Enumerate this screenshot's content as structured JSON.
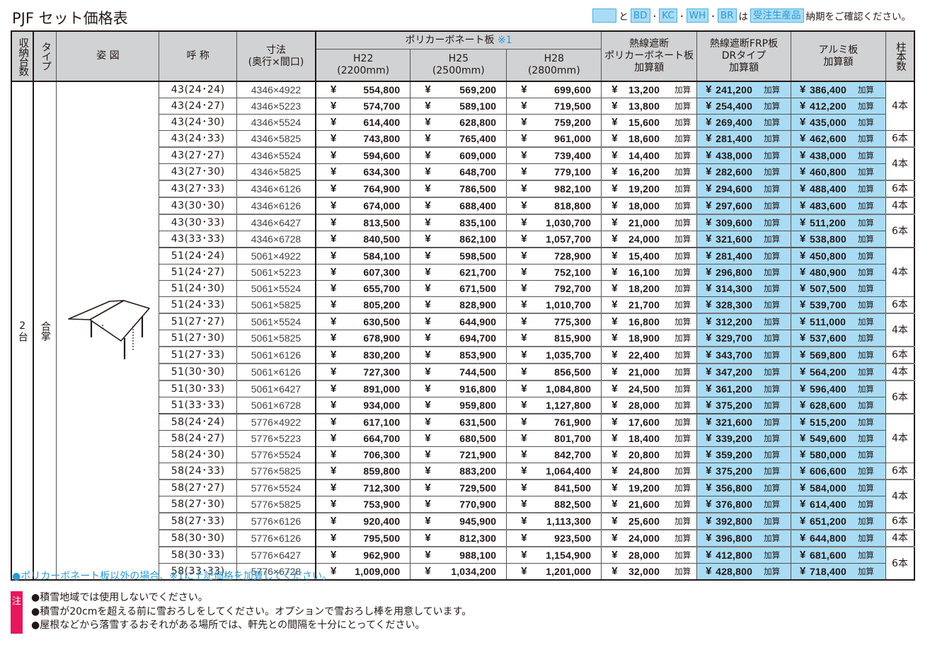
{
  "title": "PJF セット価格表",
  "legend": {
    "and": "と",
    "codes": [
      "BD",
      "KC",
      "WH",
      "BR"
    ],
    "dot": "･",
    "wa": "は",
    "made_to_order": "受注生産品",
    "confirm": "納期をご確認ください。"
  },
  "header": {
    "storage": "収納台数",
    "type": "タイプ",
    "figure": "姿 図",
    "name": "呼 称",
    "dim_line1": "寸法",
    "dim_line2": "(奥行×間口)",
    "poly_group": "ポリカーボネート板",
    "poly_group_mark": "※1",
    "h22": "H22",
    "h22_sub": "(2200mm)",
    "h25": "H25",
    "h25_sub": "(2500mm)",
    "h28": "H28",
    "h28_sub": "(2800mm)",
    "heat_poly_l1": "熱線遮断",
    "heat_poly_l2": "ポリカーボネート板",
    "heat_poly_l3": "加算額",
    "frp_l1": "熱線遮断FRP板",
    "frp_l2": "DRタイプ",
    "frp_l3": "加算額",
    "alum_l1": "アルミ板",
    "alum_l2": "加算額",
    "posts": "柱本数"
  },
  "storage_value": "2台",
  "type_value": "合掌",
  "yen": "¥",
  "kasan": "加算",
  "rows": [
    {
      "name": "43(24･24)",
      "dim": "4346×4922",
      "h22": "554,800",
      "h25": "569,200",
      "h28": "699,600",
      "heat": "13,200",
      "frp": "241,200",
      "alum": "386,400"
    },
    {
      "name": "43(24･27)",
      "dim": "4346×5223",
      "h22": "574,700",
      "h25": "589,100",
      "h28": "719,500",
      "heat": "13,800",
      "frp": "254,400",
      "alum": "412,200"
    },
    {
      "name": "43(24･30)",
      "dim": "4346×5524",
      "h22": "614,400",
      "h25": "628,800",
      "h28": "759,200",
      "heat": "15,600",
      "frp": "269,400",
      "alum": "435,000"
    },
    {
      "name": "43(24･33)",
      "dim": "4346×5825",
      "h22": "743,800",
      "h25": "765,400",
      "h28": "961,000",
      "heat": "18,600",
      "frp": "281,400",
      "alum": "462,600"
    },
    {
      "name": "43(27･27)",
      "dim": "4346×5524",
      "h22": "594,600",
      "h25": "609,000",
      "h28": "739,400",
      "heat": "14,400",
      "frp": "438,000",
      "alum": "438,000"
    },
    {
      "name": "43(27･30)",
      "dim": "4346×5825",
      "h22": "634,300",
      "h25": "648,700",
      "h28": "779,100",
      "heat": "16,200",
      "frp": "282,600",
      "alum": "460,800"
    },
    {
      "name": "43(27･33)",
      "dim": "4346×6126",
      "h22": "764,900",
      "h25": "786,500",
      "h28": "982,100",
      "heat": "19,200",
      "frp": "294,600",
      "alum": "488,400"
    },
    {
      "name": "43(30･30)",
      "dim": "4346×6126",
      "h22": "674,000",
      "h25": "688,400",
      "h28": "818,800",
      "heat": "18,000",
      "frp": "297,600",
      "alum": "483,600"
    },
    {
      "name": "43(30･33)",
      "dim": "4346×6427",
      "h22": "813,500",
      "h25": "835,100",
      "h28": "1,030,700",
      "heat": "21,000",
      "frp": "309,600",
      "alum": "511,200"
    },
    {
      "name": "43(33･33)",
      "dim": "4346×6728",
      "h22": "840,500",
      "h25": "862,100",
      "h28": "1,057,700",
      "heat": "24,000",
      "frp": "321,600",
      "alum": "538,800"
    },
    {
      "name": "51(24･24)",
      "dim": "5061×4922",
      "h22": "584,100",
      "h25": "598,500",
      "h28": "728,900",
      "heat": "15,400",
      "frp": "281,400",
      "alum": "450,800"
    },
    {
      "name": "51(24･27)",
      "dim": "5061×5223",
      "h22": "607,300",
      "h25": "621,700",
      "h28": "752,100",
      "heat": "16,100",
      "frp": "296,800",
      "alum": "480,900"
    },
    {
      "name": "51(24･30)",
      "dim": "5061×5524",
      "h22": "655,700",
      "h25": "671,500",
      "h28": "792,700",
      "heat": "18,200",
      "frp": "314,300",
      "alum": "507,500"
    },
    {
      "name": "51(24･33)",
      "dim": "5061×5825",
      "h22": "805,200",
      "h25": "828,900",
      "h28": "1,010,700",
      "heat": "21,700",
      "frp": "328,300",
      "alum": "539,700"
    },
    {
      "name": "51(27･27)",
      "dim": "5061×5524",
      "h22": "630,500",
      "h25": "644,900",
      "h28": "775,300",
      "heat": "16,800",
      "frp": "312,200",
      "alum": "511,000"
    },
    {
      "name": "51(27･30)",
      "dim": "5061×5825",
      "h22": "678,900",
      "h25": "694,700",
      "h28": "815,900",
      "heat": "18,900",
      "frp": "329,700",
      "alum": "537,600"
    },
    {
      "name": "51(27･33)",
      "dim": "5061×6126",
      "h22": "830,200",
      "h25": "853,900",
      "h28": "1,035,700",
      "heat": "22,400",
      "frp": "343,700",
      "alum": "569,800"
    },
    {
      "name": "51(30･30)",
      "dim": "5061×6126",
      "h22": "727,300",
      "h25": "744,500",
      "h28": "856,500",
      "heat": "21,000",
      "frp": "347,200",
      "alum": "564,200"
    },
    {
      "name": "51(30･33)",
      "dim": "5061×6427",
      "h22": "891,000",
      "h25": "916,800",
      "h28": "1,084,800",
      "heat": "24,500",
      "frp": "361,200",
      "alum": "596,400"
    },
    {
      "name": "51(33･33)",
      "dim": "5061×6728",
      "h22": "934,000",
      "h25": "959,800",
      "h28": "1,127,800",
      "heat": "28,000",
      "frp": "375,200",
      "alum": "628,600"
    },
    {
      "name": "58(24･24)",
      "dim": "5776×4922",
      "h22": "617,100",
      "h25": "631,500",
      "h28": "761,900",
      "heat": "17,600",
      "frp": "321,600",
      "alum": "515,200"
    },
    {
      "name": "58(24･27)",
      "dim": "5776×5223",
      "h22": "664,700",
      "h25": "680,500",
      "h28": "801,700",
      "heat": "18,400",
      "frp": "339,200",
      "alum": "549,600"
    },
    {
      "name": "58(24･30)",
      "dim": "5776×5524",
      "h22": "706,300",
      "h25": "721,900",
      "h28": "842,700",
      "heat": "20,800",
      "frp": "359,200",
      "alum": "580,000"
    },
    {
      "name": "58(24･33)",
      "dim": "5776×5825",
      "h22": "859,800",
      "h25": "883,200",
      "h28": "1,064,400",
      "heat": "24,800",
      "frp": "375,200",
      "alum": "606,600"
    },
    {
      "name": "58(27･27)",
      "dim": "5776×5524",
      "h22": "712,300",
      "h25": "729,500",
      "h28": "841,500",
      "heat": "19,200",
      "frp": "356,800",
      "alum": "584,000"
    },
    {
      "name": "58(27･30)",
      "dim": "5776×5825",
      "h22": "753,900",
      "h25": "770,900",
      "h28": "882,500",
      "heat": "21,600",
      "frp": "376,800",
      "alum": "614,400"
    },
    {
      "name": "58(27･33)",
      "dim": "5776×6126",
      "h22": "920,400",
      "h25": "945,900",
      "h28": "1,113,300",
      "heat": "25,600",
      "frp": "392,800",
      "alum": "651,200"
    },
    {
      "name": "58(30･30)",
      "dim": "5776×6126",
      "h22": "795,500",
      "h25": "812,300",
      "h28": "923,500",
      "heat": "24,000",
      "frp": "396,800",
      "alum": "644,800"
    },
    {
      "name": "58(30･33)",
      "dim": "5776×6427",
      "h22": "962,900",
      "h25": "988,100",
      "h28": "1,154,900",
      "heat": "28,000",
      "frp": "412,800",
      "alum": "681,600"
    },
    {
      "name": "58(33･33)",
      "dim": "5776×6728",
      "h22": "1,009,000",
      "h25": "1,034,200",
      "h28": "1,201,000",
      "heat": "32,000",
      "frp": "428,800",
      "alum": "718,400"
    }
  ],
  "posts": [
    {
      "start": 0,
      "span": 3,
      "label": "4本"
    },
    {
      "start": 3,
      "span": 1,
      "label": "6本"
    },
    {
      "start": 4,
      "span": 2,
      "label": "4本"
    },
    {
      "start": 6,
      "span": 1,
      "label": "6本"
    },
    {
      "start": 7,
      "span": 1,
      "label": "4本"
    },
    {
      "start": 8,
      "span": 2,
      "label": "6本"
    },
    {
      "start": 10,
      "span": 3,
      "label": "4本"
    },
    {
      "start": 13,
      "span": 1,
      "label": "6本"
    },
    {
      "start": 14,
      "span": 2,
      "label": "4本"
    },
    {
      "start": 16,
      "span": 1,
      "label": "6本"
    },
    {
      "start": 17,
      "span": 1,
      "label": "4本"
    },
    {
      "start": 18,
      "span": 2,
      "label": "6本"
    },
    {
      "start": 20,
      "span": 3,
      "label": "4本"
    },
    {
      "start": 23,
      "span": 1,
      "label": "6本"
    },
    {
      "start": 24,
      "span": 2,
      "label": "4本"
    },
    {
      "start": 26,
      "span": 1,
      "label": "6本"
    },
    {
      "start": 27,
      "span": 1,
      "label": "4本"
    },
    {
      "start": 28,
      "span": 2,
      "label": "6本"
    }
  ],
  "notes": {
    "poly_note": "●ポリカーボネート板以外の場合、※1に上記価格を加算してください。",
    "caution_mark": "注",
    "caution_items": [
      "●積雪地域では使用しないでください。",
      "●積雪が20cmを超える前に雪おろしをしてください。オプションで雪おろし棒を用意しています。",
      "●屋根などから落雪するおそれがある場所では、軒先との間隔を十分にとってください。"
    ]
  }
}
